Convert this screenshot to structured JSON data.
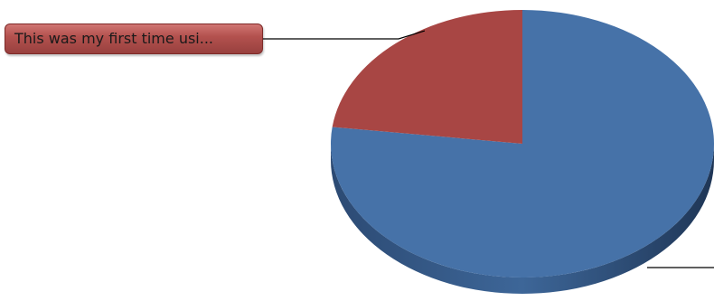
{
  "chart_data": {
    "type": "pie",
    "style": "3d",
    "slices": [
      {
        "label": "",
        "value": 77,
        "color": "#4672a8",
        "side_color": "#2f4f7c"
      },
      {
        "label": "This was my first time usi...",
        "value": 23,
        "color": "#a84644",
        "side_color": "#7a302e"
      }
    ],
    "title": "",
    "legend": "none",
    "label_box_color": "#a84644"
  }
}
